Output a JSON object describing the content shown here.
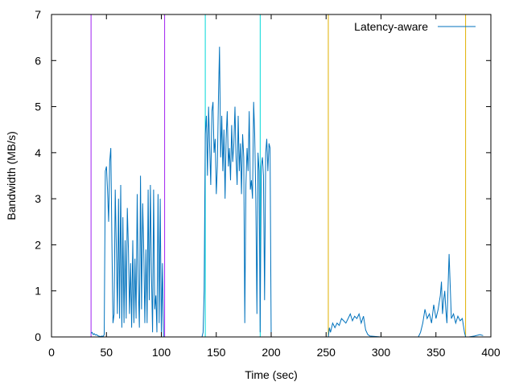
{
  "chart_data": {
    "type": "line",
    "title": "",
    "xlabel": "Time (sec)",
    "ylabel": "Bandwidth (MB/s)",
    "xlim": [
      0,
      400
    ],
    "ylim": [
      0,
      7
    ],
    "x_ticks": [
      0,
      50,
      100,
      150,
      200,
      250,
      300,
      350,
      400
    ],
    "y_ticks": [
      0,
      1,
      2,
      3,
      4,
      5,
      6,
      7
    ],
    "grid": false,
    "legend": {
      "placement": "top-right",
      "entries": [
        "Latency-aware"
      ]
    },
    "series": [
      {
        "name": "Latency-aware",
        "color": "#0072bd",
        "x": [
          36,
          37,
          38,
          39,
          40,
          41,
          42,
          43,
          44,
          45,
          46,
          47,
          48,
          49,
          50,
          51,
          52,
          53,
          54,
          55,
          56,
          57,
          58,
          59,
          60,
          61,
          62,
          63,
          64,
          65,
          66,
          67,
          68,
          69,
          70,
          71,
          72,
          73,
          74,
          75,
          76,
          77,
          78,
          79,
          80,
          81,
          82,
          83,
          84,
          85,
          86,
          87,
          88,
          89,
          90,
          91,
          92,
          93,
          94,
          95,
          96,
          97,
          98,
          99,
          100,
          101,
          102,
          103,
          104,
          110,
          120,
          130,
          137,
          138,
          139,
          140,
          141,
          142,
          143,
          144,
          145,
          146,
          147,
          148,
          149,
          150,
          151,
          152,
          153,
          154,
          155,
          156,
          157,
          158,
          159,
          160,
          161,
          162,
          163,
          164,
          165,
          166,
          167,
          168,
          169,
          170,
          171,
          172,
          173,
          174,
          175,
          176,
          177,
          178,
          179,
          180,
          181,
          182,
          183,
          184,
          185,
          186,
          187,
          188,
          189,
          190,
          191,
          192,
          193,
          194,
          195,
          196,
          197,
          198,
          199,
          200,
          201,
          202,
          210,
          220,
          230,
          240,
          250,
          252,
          253,
          254,
          256,
          258,
          260,
          262,
          264,
          266,
          268,
          270,
          272,
          274,
          276,
          278,
          280,
          282,
          284,
          286,
          288,
          290,
          300,
          310,
          320,
          330,
          334,
          336,
          338,
          340,
          342,
          344,
          346,
          348,
          350,
          352,
          354,
          355,
          356,
          357,
          358,
          359,
          360,
          362,
          364,
          366,
          368,
          370,
          372,
          374,
          376,
          377,
          378,
          380,
          385,
          390,
          393
        ],
        "y": [
          0.08,
          0.1,
          0.05,
          0.07,
          0.04,
          0.05,
          0.03,
          0.02,
          0.01,
          0.01,
          0.02,
          0.01,
          0.05,
          3.6,
          3.7,
          3.2,
          2.5,
          3.8,
          4.1,
          2.0,
          0.3,
          0.5,
          3.2,
          2.0,
          0.5,
          3.0,
          0.4,
          3.3,
          0.2,
          2.6,
          0.3,
          2.1,
          0.4,
          2.8,
          1.9,
          0.5,
          1.6,
          0.2,
          2.1,
          0.3,
          1.7,
          0.4,
          3.1,
          1.2,
          0.2,
          3.5,
          0.6,
          2.9,
          1.8,
          0.3,
          1.9,
          0.3,
          3.2,
          0.8,
          3.3,
          1.4,
          0.1,
          3.2,
          0.6,
          0.9,
          0.1,
          3.1,
          0.3,
          3.0,
          0.1,
          1.6,
          0.0,
          0.0,
          0.0,
          0.0,
          0.0,
          0.0,
          0.0,
          0.1,
          1.0,
          4.4,
          4.8,
          3.5,
          5.0,
          4.1,
          3.3,
          4.9,
          5.1,
          4.0,
          4.3,
          3.1,
          3.7,
          5.2,
          6.3,
          3.9,
          4.8,
          3.6,
          4.5,
          3.0,
          4.3,
          4.9,
          3.7,
          4.1,
          3.4,
          4.6,
          3.8,
          4.2,
          5.0,
          3.9,
          3.3,
          4.8,
          3.6,
          4.2,
          3.1,
          4.4,
          3.9,
          0.3,
          3.3,
          4.1,
          3.6,
          4.9,
          3.2,
          3.4,
          3.0,
          5.1,
          4.4,
          3.0,
          0.5,
          4.0,
          3.6,
          0.1,
          3.7,
          3.9,
          3.5,
          0.8,
          4.0,
          4.3,
          3.6,
          4.2,
          4.1,
          0.0,
          0.0,
          0.0,
          0.0,
          0.0,
          0.0,
          0.0,
          0.0,
          0.0,
          0.2,
          0.1,
          0.3,
          0.2,
          0.3,
          0.25,
          0.4,
          0.35,
          0.3,
          0.4,
          0.5,
          0.35,
          0.45,
          0.4,
          0.5,
          0.3,
          0.45,
          0.15,
          0.05,
          0.02,
          0.0,
          0.0,
          0.0,
          0.0,
          0.0,
          0.1,
          0.3,
          0.6,
          0.4,
          0.5,
          0.3,
          0.7,
          0.4,
          0.6,
          0.9,
          1.2,
          0.5,
          0.8,
          1.0,
          0.6,
          0.3,
          1.8,
          0.4,
          0.5,
          0.3,
          0.45,
          0.35,
          0.4,
          0.1,
          0.0,
          0.0,
          0.0,
          0.02,
          0.05,
          0.03
        ]
      }
    ],
    "vertical_lines": [
      {
        "x": 36,
        "color": "#a020f0"
      },
      {
        "x": 103,
        "color": "#a020f0"
      },
      {
        "x": 140,
        "color": "#00d8d8"
      },
      {
        "x": 190,
        "color": "#00d8d8"
      },
      {
        "x": 252,
        "color": "#e0b000"
      },
      {
        "x": 377,
        "color": "#e0b000"
      }
    ]
  }
}
